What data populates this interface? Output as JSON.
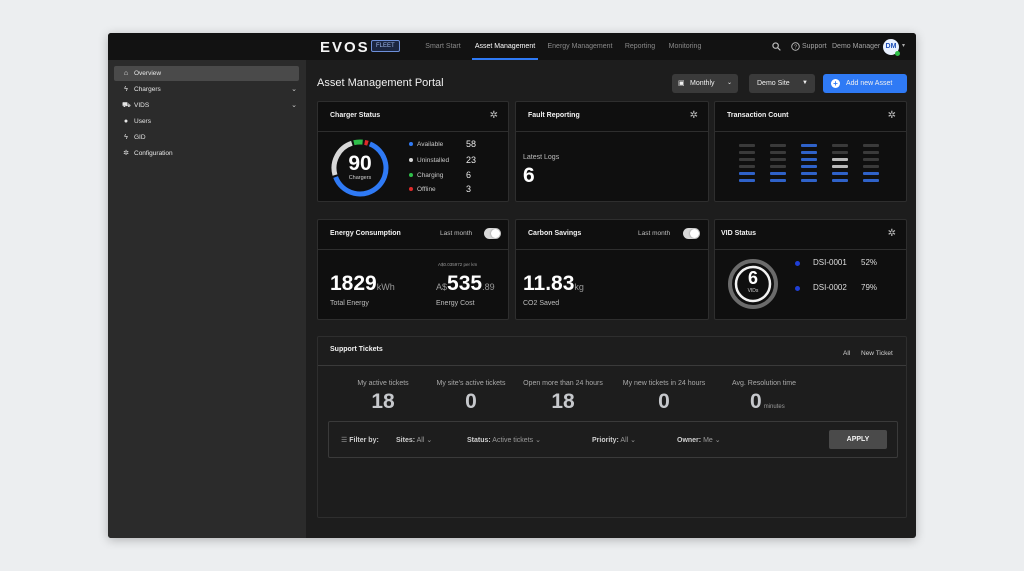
{
  "brand": {
    "logo": "EVOS",
    "badge": "FLEET"
  },
  "nav": {
    "tabs": [
      "Smart Start",
      "Asset Management",
      "Energy Management",
      "Reporting",
      "Monitoring"
    ],
    "active": "Asset Management"
  },
  "topright": {
    "support": "Support",
    "user": "Demo Manager",
    "initials": "DM"
  },
  "sidebar": {
    "items": [
      {
        "label": "Overview",
        "icon": "home-icon",
        "active": true
      },
      {
        "label": "Chargers",
        "icon": "bolt-icon",
        "expandable": true
      },
      {
        "label": "VIDS",
        "icon": "car-icon",
        "expandable": true
      },
      {
        "label": "Users",
        "icon": "user-icon"
      },
      {
        "label": "GID",
        "icon": "bolt-icon"
      },
      {
        "label": "Configuration",
        "icon": "gear-icon"
      }
    ]
  },
  "page": {
    "title": "Asset Management Portal",
    "period": "Monthly",
    "site": "Demo Site",
    "add_button": "Add new Asset"
  },
  "charger_status": {
    "title": "Charger Status",
    "total": "90",
    "total_label": "Chargers",
    "legend": [
      {
        "label": "Available",
        "value": "58",
        "color": "#2f7af5"
      },
      {
        "label": "Uninstalled",
        "value": "23",
        "color": "#d8d8d8"
      },
      {
        "label": "Charging",
        "value": "6",
        "color": "#2fbf4a"
      },
      {
        "label": "Offline",
        "value": "3",
        "color": "#e02b2b"
      }
    ]
  },
  "fault_reporting": {
    "title": "Fault Reporting",
    "label": "Latest Logs",
    "value": "6"
  },
  "transaction_count": {
    "title": "Transaction Count"
  },
  "energy": {
    "title": "Energy Consumption",
    "toggle_label": "Last month",
    "value": "1829",
    "unit": "kWh",
    "label": "Total Energy",
    "rate": "A$0.035972 per km",
    "cost_prefix": "A$",
    "cost_main": "535",
    "cost_dec": ".89",
    "cost_label": "Energy Cost"
  },
  "carbon": {
    "title": "Carbon Savings",
    "toggle_label": "Last month",
    "value": "11.83",
    "unit": "kg",
    "label": "CO2 Saved"
  },
  "vid_status": {
    "title": "VID Status",
    "total": "6",
    "total_label": "VIDs",
    "items": [
      {
        "name": "DSI-0001",
        "pct": "52%",
        "color": "#1f3fd6"
      },
      {
        "name": "DSI-0002",
        "pct": "79%",
        "color": "#1f3fd6"
      }
    ]
  },
  "tickets": {
    "title": "Support Tickets",
    "links": [
      "All",
      "New Ticket"
    ],
    "stats": [
      {
        "label": "My active tickets",
        "value": "18"
      },
      {
        "label": "My site's active tickets",
        "value": "0"
      },
      {
        "label": "Open more than 24 hours",
        "value": "18"
      },
      {
        "label": "My new tickets in 24 hours",
        "value": "0"
      },
      {
        "label": "Avg. Resolution time",
        "value": "0",
        "unit": "minutes"
      }
    ],
    "filter": {
      "label": "Filter by:",
      "sites_label": "Sites:",
      "sites_value": "All",
      "status_label": "Status:",
      "status_value": "Active tickets",
      "priority_label": "Priority:",
      "priority_value": "All",
      "owner_label": "Owner:",
      "owner_value": "Me",
      "apply": "APPLY"
    }
  }
}
